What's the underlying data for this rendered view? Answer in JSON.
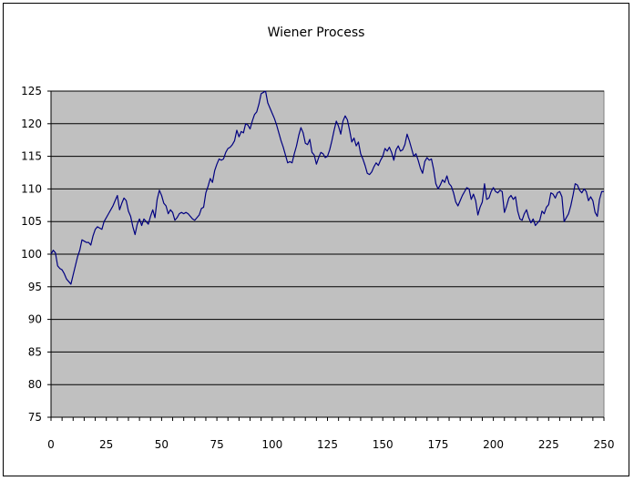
{
  "chart_data": {
    "type": "line",
    "title": "Wiener Process",
    "xlabel": "",
    "ylabel": "",
    "xlim": [
      0,
      250
    ],
    "ylim": [
      75,
      125
    ],
    "x_ticks": [
      0,
      25,
      50,
      75,
      100,
      125,
      150,
      175,
      200,
      225,
      250
    ],
    "y_ticks": [
      75,
      80,
      85,
      90,
      95,
      100,
      105,
      110,
      115,
      120,
      125
    ],
    "grid": true,
    "legend": "none",
    "colors": {
      "line": "#000080",
      "plot_bg": "#c0c0c0",
      "grid": "#000000"
    },
    "series": [
      {
        "points": [
          [
            0,
            100
          ],
          [
            1,
            100.6
          ],
          [
            2,
            100.2
          ],
          [
            3,
            98.2
          ],
          [
            4,
            97.8
          ],
          [
            5,
            97.6
          ],
          [
            6,
            97.0
          ],
          [
            7,
            96.2
          ],
          [
            8,
            95.8
          ],
          [
            9,
            95.4
          ],
          [
            10,
            96.8
          ],
          [
            11,
            98.2
          ],
          [
            12,
            99.6
          ],
          [
            13,
            100.6
          ],
          [
            14,
            102.2
          ],
          [
            15,
            102.0
          ],
          [
            16,
            101.8
          ],
          [
            17,
            101.8
          ],
          [
            18,
            101.4
          ],
          [
            19,
            102.8
          ],
          [
            20,
            103.8
          ],
          [
            21,
            104.2
          ],
          [
            22,
            104.0
          ],
          [
            23,
            103.8
          ],
          [
            24,
            105.0
          ],
          [
            25,
            105.6
          ],
          [
            26,
            106.2
          ],
          [
            27,
            106.8
          ],
          [
            28,
            107.4
          ],
          [
            29,
            108.2
          ],
          [
            30,
            109.0
          ],
          [
            31,
            106.8
          ],
          [
            32,
            107.8
          ],
          [
            33,
            108.6
          ],
          [
            34,
            108.2
          ],
          [
            35,
            106.6
          ],
          [
            36,
            105.8
          ],
          [
            37,
            104.2
          ],
          [
            38,
            103.0
          ],
          [
            39,
            104.6
          ],
          [
            40,
            105.4
          ],
          [
            41,
            104.4
          ],
          [
            42,
            105.4
          ],
          [
            43,
            105.0
          ],
          [
            44,
            104.6
          ],
          [
            45,
            105.8
          ],
          [
            46,
            106.8
          ],
          [
            47,
            105.6
          ],
          [
            48,
            108.4
          ],
          [
            49,
            109.8
          ],
          [
            50,
            109.0
          ],
          [
            51,
            107.8
          ],
          [
            52,
            107.4
          ],
          [
            53,
            106.2
          ],
          [
            54,
            106.8
          ],
          [
            55,
            106.4
          ],
          [
            56,
            105.2
          ],
          [
            57,
            105.6
          ],
          [
            58,
            106.2
          ],
          [
            59,
            106.4
          ],
          [
            60,
            106.2
          ],
          [
            61,
            106.4
          ],
          [
            62,
            106.2
          ],
          [
            63,
            105.8
          ],
          [
            64,
            105.4
          ],
          [
            65,
            105.2
          ],
          [
            66,
            105.6
          ],
          [
            67,
            106.0
          ],
          [
            68,
            107.0
          ],
          [
            69,
            107.2
          ],
          [
            70,
            109.4
          ],
          [
            71,
            110.4
          ],
          [
            72,
            111.6
          ],
          [
            73,
            111.0
          ],
          [
            74,
            112.8
          ],
          [
            75,
            113.8
          ],
          [
            76,
            114.6
          ],
          [
            77,
            114.4
          ],
          [
            78,
            114.6
          ],
          [
            79,
            115.6
          ],
          [
            80,
            116.2
          ],
          [
            81,
            116.4
          ],
          [
            82,
            116.8
          ],
          [
            83,
            117.4
          ],
          [
            84,
            119.0
          ],
          [
            85,
            118.0
          ],
          [
            86,
            118.8
          ],
          [
            87,
            118.6
          ],
          [
            88,
            120.0
          ],
          [
            89,
            119.8
          ],
          [
            90,
            119.2
          ],
          [
            91,
            120.4
          ],
          [
            92,
            121.4
          ],
          [
            93,
            121.8
          ],
          [
            94,
            123.0
          ],
          [
            95,
            124.6
          ],
          [
            96,
            124.8
          ],
          [
            97,
            125.0
          ],
          [
            98,
            123.2
          ],
          [
            99,
            122.4
          ],
          [
            100,
            121.6
          ],
          [
            101,
            120.8
          ],
          [
            102,
            119.8
          ],
          [
            103,
            118.6
          ],
          [
            104,
            117.4
          ],
          [
            105,
            116.4
          ],
          [
            106,
            115.2
          ],
          [
            107,
            114.0
          ],
          [
            108,
            114.2
          ],
          [
            109,
            114.0
          ],
          [
            110,
            115.4
          ],
          [
            111,
            116.6
          ],
          [
            112,
            118.2
          ],
          [
            113,
            119.4
          ],
          [
            114,
            118.6
          ],
          [
            115,
            117.0
          ],
          [
            116,
            116.8
          ],
          [
            117,
            117.6
          ],
          [
            118,
            115.6
          ],
          [
            119,
            115.2
          ],
          [
            120,
            113.8
          ],
          [
            121,
            114.8
          ],
          [
            122,
            115.6
          ],
          [
            123,
            115.4
          ],
          [
            124,
            114.8
          ],
          [
            125,
            115.0
          ],
          [
            126,
            116.0
          ],
          [
            127,
            117.4
          ],
          [
            128,
            119.0
          ],
          [
            129,
            120.4
          ],
          [
            130,
            119.6
          ],
          [
            131,
            118.4
          ],
          [
            132,
            120.4
          ],
          [
            133,
            121.2
          ],
          [
            134,
            120.6
          ],
          [
            135,
            119.0
          ],
          [
            136,
            117.2
          ],
          [
            137,
            117.8
          ],
          [
            138,
            116.6
          ],
          [
            139,
            117.2
          ],
          [
            140,
            115.4
          ],
          [
            141,
            114.6
          ],
          [
            142,
            113.6
          ],
          [
            143,
            112.4
          ],
          [
            144,
            112.2
          ],
          [
            145,
            112.6
          ],
          [
            146,
            113.4
          ],
          [
            147,
            114.0
          ],
          [
            148,
            113.6
          ],
          [
            149,
            114.4
          ],
          [
            150,
            115.0
          ],
          [
            151,
            116.2
          ],
          [
            152,
            115.8
          ],
          [
            153,
            116.4
          ],
          [
            154,
            115.6
          ],
          [
            155,
            114.4
          ],
          [
            156,
            116.0
          ],
          [
            157,
            116.6
          ],
          [
            158,
            115.8
          ],
          [
            159,
            116.0
          ],
          [
            160,
            116.8
          ],
          [
            161,
            118.4
          ],
          [
            162,
            117.4
          ],
          [
            163,
            116.2
          ],
          [
            164,
            115.0
          ],
          [
            165,
            115.4
          ],
          [
            166,
            114.4
          ],
          [
            167,
            113.2
          ],
          [
            168,
            112.4
          ],
          [
            169,
            114.2
          ],
          [
            170,
            114.8
          ],
          [
            171,
            114.4
          ],
          [
            172,
            114.6
          ],
          [
            173,
            113.0
          ],
          [
            174,
            110.8
          ],
          [
            175,
            110.0
          ],
          [
            176,
            110.6
          ],
          [
            177,
            111.4
          ],
          [
            178,
            111.0
          ],
          [
            179,
            112.0
          ],
          [
            180,
            110.8
          ],
          [
            181,
            110.4
          ],
          [
            182,
            109.4
          ],
          [
            183,
            108.0
          ],
          [
            184,
            107.4
          ],
          [
            185,
            108.2
          ],
          [
            186,
            109.0
          ],
          [
            187,
            109.6
          ],
          [
            188,
            110.2
          ],
          [
            189,
            110.0
          ],
          [
            190,
            108.4
          ],
          [
            191,
            109.2
          ],
          [
            192,
            108.2
          ],
          [
            193,
            106.0
          ],
          [
            194,
            107.2
          ],
          [
            195,
            108.0
          ],
          [
            196,
            110.8
          ],
          [
            197,
            108.4
          ],
          [
            198,
            108.6
          ],
          [
            199,
            109.6
          ],
          [
            200,
            110.2
          ],
          [
            201,
            109.6
          ],
          [
            202,
            109.4
          ],
          [
            203,
            109.8
          ],
          [
            204,
            109.6
          ],
          [
            205,
            106.4
          ],
          [
            206,
            107.4
          ],
          [
            207,
            108.6
          ],
          [
            208,
            109.0
          ],
          [
            209,
            108.4
          ],
          [
            210,
            108.8
          ],
          [
            211,
            106.6
          ],
          [
            212,
            105.4
          ],
          [
            213,
            105.2
          ],
          [
            214,
            106.2
          ],
          [
            215,
            106.8
          ],
          [
            216,
            105.6
          ],
          [
            217,
            104.8
          ],
          [
            218,
            105.4
          ],
          [
            219,
            104.4
          ],
          [
            220,
            104.8
          ],
          [
            221,
            105.2
          ],
          [
            222,
            106.6
          ],
          [
            223,
            106.2
          ],
          [
            224,
            107.2
          ],
          [
            225,
            107.6
          ],
          [
            226,
            109.4
          ],
          [
            227,
            109.2
          ],
          [
            228,
            108.6
          ],
          [
            229,
            109.4
          ],
          [
            230,
            109.6
          ],
          [
            231,
            108.8
          ],
          [
            232,
            105.0
          ],
          [
            233,
            105.6
          ],
          [
            234,
            106.2
          ],
          [
            235,
            107.4
          ],
          [
            236,
            109.0
          ],
          [
            237,
            110.8
          ],
          [
            238,
            110.6
          ],
          [
            239,
            109.8
          ],
          [
            240,
            109.4
          ],
          [
            241,
            110.0
          ],
          [
            242,
            109.6
          ],
          [
            243,
            108.2
          ],
          [
            244,
            108.8
          ],
          [
            245,
            108.2
          ],
          [
            246,
            106.4
          ],
          [
            247,
            105.8
          ],
          [
            248,
            108.4
          ],
          [
            249,
            109.6
          ],
          [
            250,
            109.6
          ]
        ]
      }
    ]
  }
}
